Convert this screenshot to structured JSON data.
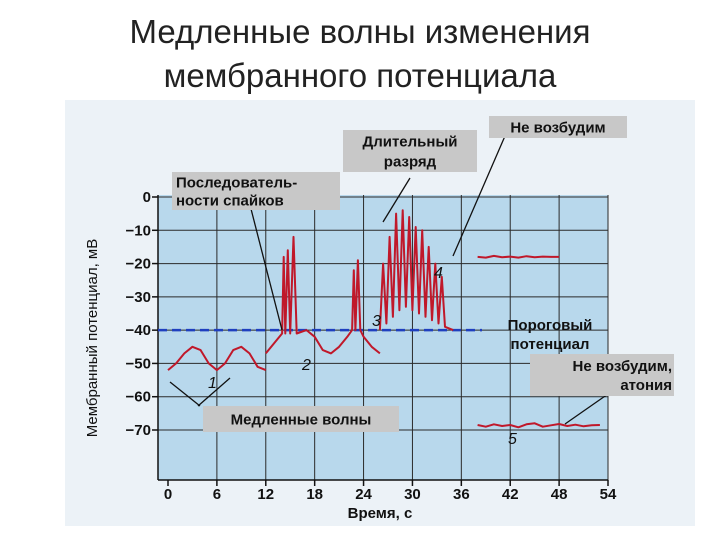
{
  "slide": {
    "title_line1": "Медленные волны изменения",
    "title_line2": "мембранного потенциала"
  },
  "colors": {
    "plot_bg": "#b8d8ec",
    "panel_bg": "#ecf2f7",
    "trace": "#c0182a",
    "threshold": "#1f3fbf",
    "label_bg": "#c8c8c8",
    "slide_bg": "#ffffff",
    "title_text": "#222222"
  },
  "chart_data": {
    "type": "line",
    "xlabel": "Время, с",
    "ylabel": "Мембранный потенциал, мВ",
    "xlim": [
      0,
      54
    ],
    "ylim": [
      -78,
      0
    ],
    "x_ticks": [
      0,
      6,
      12,
      18,
      24,
      30,
      36,
      42,
      48,
      54
    ],
    "y_ticks": [
      0,
      -10,
      -20,
      -30,
      -40,
      -50,
      -60,
      -70
    ],
    "x_tick_labels": [
      "0",
      "6",
      "12",
      "18",
      "24",
      "30",
      "36",
      "42",
      "48",
      "54"
    ],
    "y_tick_labels": [
      "0",
      "−10",
      "−20",
      "−30",
      "−40",
      "−50",
      "−60",
      "−70"
    ],
    "grid": true,
    "threshold": {
      "y": -40,
      "label": "Пороговый потенциал"
    },
    "series": [
      {
        "marker": "1",
        "note": "Медленные волны",
        "points": [
          [
            0,
            -52
          ],
          [
            1,
            -50
          ],
          [
            2,
            -47
          ],
          [
            3,
            -45
          ],
          [
            4,
            -46
          ],
          [
            5,
            -50
          ],
          [
            6,
            -52
          ],
          [
            7,
            -50
          ],
          [
            8,
            -46
          ],
          [
            9,
            -45
          ],
          [
            10,
            -47
          ],
          [
            11,
            -51
          ],
          [
            12,
            -52
          ]
        ]
      },
      {
        "marker": "2",
        "note": "Последовательности спайков",
        "points": [
          [
            12,
            -47
          ],
          [
            13,
            -44
          ],
          [
            14,
            -41
          ],
          [
            14.2,
            -18
          ],
          [
            14.4,
            -41
          ],
          [
            14.7,
            -16
          ],
          [
            15,
            -41
          ],
          [
            15.4,
            -12
          ],
          [
            15.8,
            -41
          ],
          [
            17,
            -40
          ],
          [
            18,
            -42
          ],
          [
            19,
            -46
          ],
          [
            20,
            -47
          ],
          [
            21,
            -45
          ],
          [
            22,
            -42
          ],
          [
            22.6,
            -40
          ],
          [
            22.8,
            -22
          ],
          [
            23,
            -40
          ],
          [
            23.3,
            -19
          ],
          [
            23.6,
            -40
          ],
          [
            24,
            -42
          ],
          [
            25,
            -45
          ],
          [
            26,
            -47
          ]
        ]
      },
      {
        "marker": "3",
        "note": "Длительный разряд",
        "points": [
          [
            26,
            -40
          ],
          [
            26.4,
            -20
          ],
          [
            26.8,
            -38
          ],
          [
            27.2,
            -12
          ],
          [
            27.6,
            -36
          ],
          [
            28,
            -5
          ],
          [
            28.4,
            -34
          ],
          [
            28.8,
            -4
          ],
          [
            29.2,
            -33
          ],
          [
            29.6,
            -6
          ],
          [
            30,
            -34
          ],
          [
            30.4,
            -9
          ],
          [
            30.8,
            -35
          ],
          [
            31.2,
            -10
          ],
          [
            31.6,
            -36
          ],
          [
            32,
            -15
          ],
          [
            32.4,
            -37
          ],
          [
            32.8,
            -20
          ],
          [
            33.2,
            -38
          ],
          [
            33.6,
            -24
          ],
          [
            34,
            -39
          ],
          [
            35,
            -40
          ]
        ]
      },
      {
        "marker": "4",
        "note": "Не возбудим",
        "points": [
          [
            38,
            -18
          ],
          [
            39,
            -18.2
          ],
          [
            40,
            -17.7
          ],
          [
            41,
            -18.1
          ],
          [
            42,
            -17.9
          ],
          [
            43,
            -18.2
          ],
          [
            44,
            -17.8
          ],
          [
            45,
            -18.1
          ],
          [
            46,
            -17.9
          ],
          [
            47,
            -18
          ],
          [
            48,
            -18
          ]
        ]
      },
      {
        "marker": "5",
        "note": "Не возбудим, атония",
        "points": [
          [
            38,
            -68.5
          ],
          [
            39,
            -69
          ],
          [
            40,
            -68.3
          ],
          [
            41,
            -68.8
          ],
          [
            42,
            -68.5
          ],
          [
            43,
            -69.2
          ],
          [
            44,
            -68.3
          ],
          [
            45,
            -68
          ],
          [
            46,
            -69
          ],
          [
            47,
            -68.6
          ],
          [
            48,
            -68.2
          ],
          [
            49,
            -68.8
          ],
          [
            50,
            -68.4
          ],
          [
            51,
            -68.9
          ],
          [
            52,
            -68.6
          ],
          [
            53,
            -68.5
          ]
        ]
      }
    ],
    "callouts": [
      {
        "lines": [
          "Последователь-",
          "ности спайков"
        ]
      },
      {
        "lines": [
          "Длительный",
          "разряд"
        ]
      },
      {
        "lines": [
          "Не возбудим"
        ]
      },
      {
        "lines": [
          "Пороговый",
          "потенциал"
        ]
      },
      {
        "lines": [
          "Не возбудим,",
          "атония"
        ]
      },
      {
        "lines": [
          "Медленные волны"
        ]
      }
    ]
  }
}
